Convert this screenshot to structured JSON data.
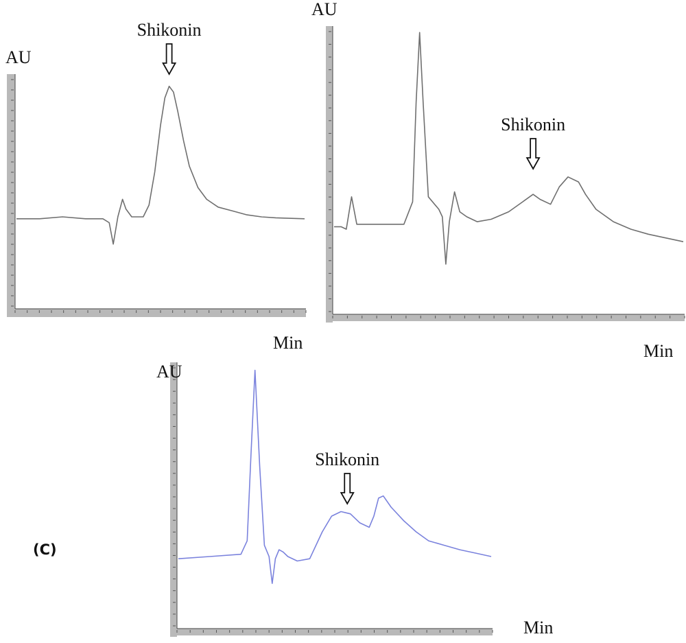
{
  "chart_data": [
    {
      "type": "line",
      "panel": "",
      "title": "",
      "xlabel": "Min",
      "ylabel": "AU",
      "color": "#6f6f6f",
      "annotation": {
        "label": "Shikonin",
        "x": 0.53,
        "arrow": "down"
      },
      "x": [
        0,
        0.08,
        0.16,
        0.24,
        0.3,
        0.322,
        0.336,
        0.352,
        0.368,
        0.38,
        0.4,
        0.44,
        0.46,
        0.48,
        0.5,
        0.515,
        0.53,
        0.545,
        0.56,
        0.58,
        0.6,
        0.63,
        0.66,
        0.7,
        0.75,
        0.8,
        0.85,
        0.9,
        1.0
      ],
      "y": [
        0.3,
        0.3,
        0.31,
        0.3,
        0.3,
        0.28,
        0.17,
        0.31,
        0.4,
        0.35,
        0.31,
        0.31,
        0.37,
        0.54,
        0.78,
        0.92,
        0.98,
        0.95,
        0.85,
        0.7,
        0.57,
        0.46,
        0.4,
        0.36,
        0.34,
        0.32,
        0.31,
        0.305,
        0.3
      ]
    },
    {
      "type": "line",
      "panel": "",
      "title": "",
      "xlabel": "Min",
      "ylabel": "AU",
      "color": "#6f6f6f",
      "annotation": {
        "label": "Shikonin",
        "x": 0.57,
        "arrow": "down"
      },
      "x": [
        0,
        0.02,
        0.035,
        0.05,
        0.065,
        0.08,
        0.1,
        0.15,
        0.2,
        0.225,
        0.235,
        0.245,
        0.255,
        0.27,
        0.3,
        0.31,
        0.32,
        0.33,
        0.345,
        0.36,
        0.38,
        0.41,
        0.45,
        0.5,
        0.54,
        0.57,
        0.59,
        0.62,
        0.645,
        0.67,
        0.7,
        0.72,
        0.75,
        0.8,
        0.85,
        0.9,
        1.0
      ],
      "y": [
        0.2,
        0.2,
        0.19,
        0.32,
        0.21,
        0.21,
        0.21,
        0.21,
        0.21,
        0.3,
        0.7,
        0.98,
        0.7,
        0.32,
        0.27,
        0.24,
        0.05,
        0.22,
        0.34,
        0.26,
        0.24,
        0.22,
        0.23,
        0.26,
        0.3,
        0.33,
        0.31,
        0.29,
        0.36,
        0.4,
        0.38,
        0.33,
        0.27,
        0.22,
        0.19,
        0.17,
        0.14
      ]
    },
    {
      "type": "line",
      "panel": "(C)",
      "title": "",
      "xlabel": "Min",
      "ylabel": "AU",
      "color": "#7a82dd",
      "annotation": {
        "label": "Shikonin",
        "x": 0.54,
        "arrow": "down"
      },
      "x": [
        0,
        0.1,
        0.2,
        0.22,
        0.232,
        0.245,
        0.26,
        0.275,
        0.29,
        0.3,
        0.31,
        0.322,
        0.335,
        0.35,
        0.38,
        0.42,
        0.46,
        0.49,
        0.52,
        0.55,
        0.58,
        0.61,
        0.625,
        0.64,
        0.655,
        0.68,
        0.72,
        0.76,
        0.8,
        0.85,
        0.9,
        0.95,
        1.0
      ],
      "y": [
        0.14,
        0.15,
        0.16,
        0.22,
        0.6,
        0.98,
        0.55,
        0.2,
        0.15,
        0.03,
        0.14,
        0.18,
        0.17,
        0.15,
        0.13,
        0.14,
        0.26,
        0.33,
        0.35,
        0.34,
        0.3,
        0.28,
        0.33,
        0.41,
        0.42,
        0.37,
        0.31,
        0.26,
        0.22,
        0.2,
        0.18,
        0.165,
        0.15
      ]
    }
  ]
}
